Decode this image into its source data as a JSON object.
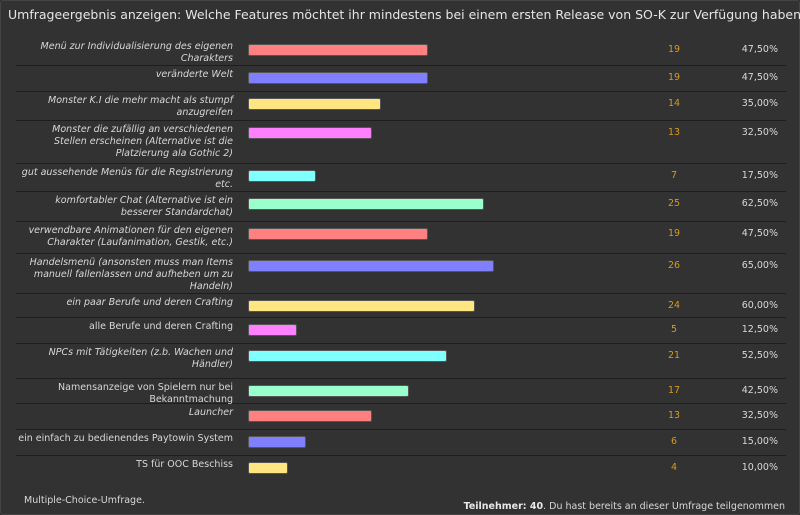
{
  "title": "Umfrageergebnis anzeigen: Welche Features möchtet ihr mindestens bei einem ersten Release von SO-K zur Verfügung haben?",
  "colors": [
    "#ff8080",
    "#8080ff",
    "#ffe680",
    "#ff80ff",
    "#80ffff",
    "#99ffcc"
  ],
  "options": [
    {
      "label": "Menü zur Individualisierung des eigenen Charakters",
      "votes": "19",
      "percent": "47,50%",
      "value": 47.5,
      "italic": true
    },
    {
      "label": "veränderte Welt",
      "votes": "19",
      "percent": "47,50%",
      "value": 47.5,
      "italic": true
    },
    {
      "label": "Monster K.I die mehr macht als stumpf anzugreifen",
      "votes": "14",
      "percent": "35,00%",
      "value": 35,
      "italic": true
    },
    {
      "label": "Monster die zufällig an verschiedenen Stellen erscheinen (Alternative ist die Platzierung ala Gothic 2)",
      "votes": "13",
      "percent": "32,50%",
      "value": 32.5,
      "italic": true
    },
    {
      "label": "gut aussehende Menüs für die Registrierung etc.",
      "votes": "7",
      "percent": "17,50%",
      "value": 17.5,
      "italic": true
    },
    {
      "label": "komfortabler Chat (Alternative ist ein besserer Standardchat)",
      "votes": "25",
      "percent": "62,50%",
      "value": 62.5,
      "italic": true
    },
    {
      "label": "verwendbare Animationen für den eigenen Charakter (Laufanimation, Gestik, etc.)",
      "votes": "19",
      "percent": "47,50%",
      "value": 47.5,
      "italic": true
    },
    {
      "label": "Handelsmenü (ansonsten muss man Items manuell fallenlassen und aufheben um zu Handeln)",
      "votes": "26",
      "percent": "65,00%",
      "value": 65,
      "italic": true
    },
    {
      "label": "ein paar Berufe und deren Crafting",
      "votes": "24",
      "percent": "60,00%",
      "value": 60,
      "italic": true
    },
    {
      "label": "alle Berufe und deren Crafting",
      "votes": "5",
      "percent": "12,50%",
      "value": 12.5,
      "italic": false
    },
    {
      "label": "NPCs mit Tätigkeiten (z.b. Wachen und Händler)",
      "votes": "21",
      "percent": "52,50%",
      "value": 52.5,
      "italic": true
    },
    {
      "label": "Namensanzeige von Spielern nur bei Bekanntmachung",
      "votes": "17",
      "percent": "42,50%",
      "value": 42.5,
      "italic": false
    },
    {
      "label": "Launcher",
      "votes": "13",
      "percent": "32,50%",
      "value": 32.5,
      "italic": true
    },
    {
      "label": "ein einfach zu bedienendes Paytowin System",
      "votes": "6",
      "percent": "15,00%",
      "value": 15,
      "italic": false
    },
    {
      "label": "TS für OOC Beschiss",
      "votes": "4",
      "percent": "10,00%",
      "value": 10,
      "italic": false
    }
  ],
  "footer": {
    "type": "Multiple-Choice-Umfrage.",
    "participants_label": "Teilnehmer: 40",
    "note": ". Du hast bereits an dieser Umfrage teilgenommen"
  }
}
